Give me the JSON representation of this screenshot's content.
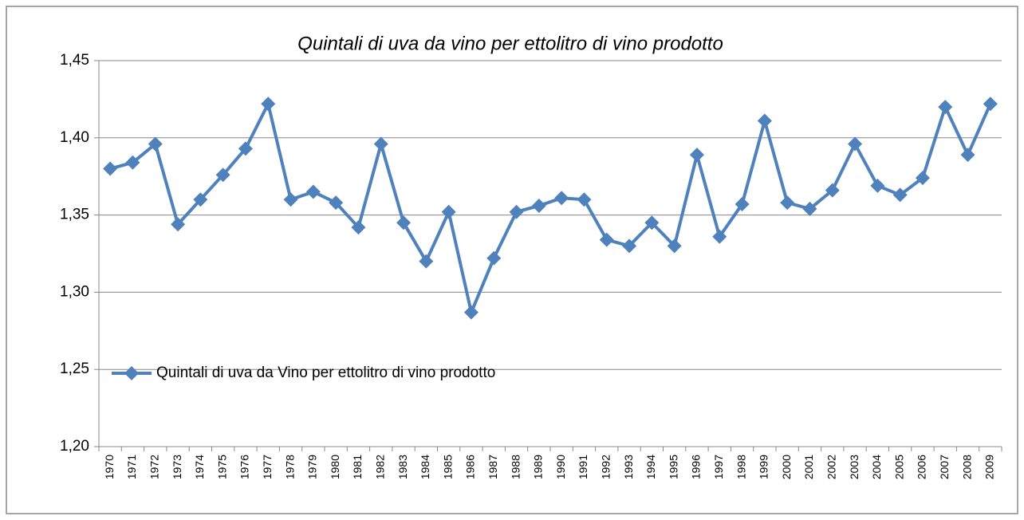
{
  "chart_data": {
    "type": "line",
    "title": "Quintali di uva da vino per ettolitro di vino prodotto",
    "categories": [
      "1970",
      "1971",
      "1972",
      "1973",
      "1974",
      "1975",
      "1976",
      "1977",
      "1978",
      "1979",
      "1980",
      "1981",
      "1982",
      "1983",
      "1984",
      "1985",
      "1986",
      "1987",
      "1988",
      "1989",
      "1990",
      "1991",
      "1992",
      "1993",
      "1994",
      "1995",
      "1996",
      "1997",
      "1998",
      "1999",
      "2000",
      "2001",
      "2002",
      "2003",
      "2004",
      "2005",
      "2006",
      "2007",
      "2008",
      "2009"
    ],
    "series": [
      {
        "name": "Quintali di uva da Vino per ettolitro di vino prodotto",
        "color": "#4f81bd",
        "values": [
          1.38,
          1.384,
          1.396,
          1.344,
          1.36,
          1.376,
          1.393,
          1.422,
          1.36,
          1.365,
          1.358,
          1.342,
          1.396,
          1.345,
          1.32,
          1.352,
          1.287,
          1.322,
          1.352,
          1.356,
          1.361,
          1.36,
          1.334,
          1.33,
          1.345,
          1.33,
          1.389,
          1.336,
          1.357,
          1.411,
          1.358,
          1.354,
          1.366,
          1.396,
          1.369,
          1.363,
          1.374,
          1.42,
          1.389,
          1.422
        ]
      }
    ],
    "ylim": [
      1.2,
      1.45
    ],
    "yticks": [
      {
        "value": 1.2,
        "label": "1,20"
      },
      {
        "value": 1.25,
        "label": "1,25"
      },
      {
        "value": 1.3,
        "label": "1,30"
      },
      {
        "value": 1.35,
        "label": "1,35"
      },
      {
        "value": 1.4,
        "label": "1,40"
      },
      {
        "value": 1.45,
        "label": "1,45"
      }
    ],
    "grid": true,
    "legend": "left"
  }
}
